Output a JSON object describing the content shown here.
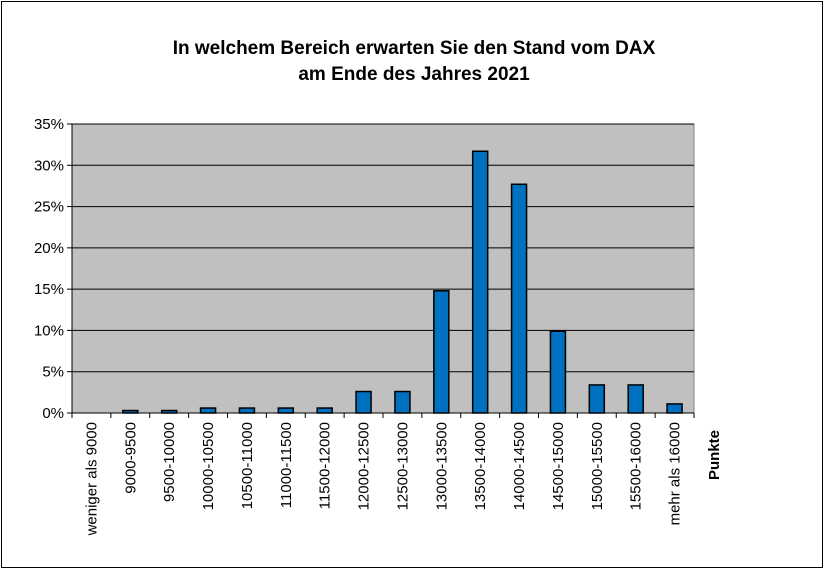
{
  "chart_data": {
    "type": "bar",
    "title": [
      "In welchem Bereich erwarten Sie den Stand vom DAX",
      "am Ende des Jahres 2021"
    ],
    "xlabel": "Punkte",
    "ylabel": "",
    "ylim": [
      0,
      35
    ],
    "y_tick_values": [
      0,
      5,
      10,
      15,
      20,
      25,
      30,
      35
    ],
    "y_tick_labels": [
      "0%",
      "5%",
      "10%",
      "15%",
      "20%",
      "25%",
      "30%",
      "35%"
    ],
    "grid": true,
    "categories": [
      "weniger als 9000",
      "9000-9500",
      "9500-10000",
      "10000-10500",
      "10500-11000",
      "11000-11500",
      "11500-12000",
      "12000-12500",
      "12500-13000",
      "13000-13500",
      "13500-14000",
      "14000-14500",
      "14500-15000",
      "15000-15500",
      "15500-16000",
      "mehr als 16000"
    ],
    "values": [
      0,
      0.3,
      0.3,
      0.6,
      0.6,
      0.6,
      0.6,
      2.6,
      2.6,
      14.8,
      31.7,
      27.7,
      9.9,
      3.4,
      3.4,
      1.1
    ],
    "colors": {
      "bar": "#0070c0",
      "plot_bg": "#c0c0c0",
      "grid": "#000000"
    }
  }
}
